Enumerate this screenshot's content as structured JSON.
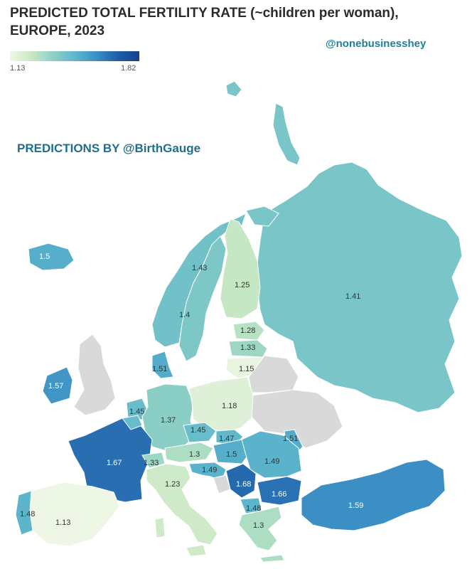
{
  "title": "PREDICTED TOTAL FERTILITY RATE (~children per woman), EUROPE, 2023",
  "title_line1": "PREDICTED TOTAL FERTILITY RATE (~children per woman),",
  "title_line2": "EUROPE, 2023",
  "handle": "@nonebusinesshey",
  "credit": "PREDICTIONS BY @BirthGauge",
  "legend": {
    "min_label": "1.13",
    "max_label": "1.82",
    "min_color": "#e8f5e0",
    "max_color": "#1a3f8c"
  },
  "colors": {
    "no_data": "#d9d9d9"
  },
  "regions": [
    {
      "value": "1.41"
    },
    {
      "value": "1.5"
    },
    {
      "value": "1.43"
    },
    {
      "value": "1.4"
    },
    {
      "value": "1.25"
    },
    {
      "value": "1.28"
    },
    {
      "value": "1.33"
    },
    {
      "value": "1.15"
    },
    {
      "value": "1.51"
    },
    {
      "value": "1.57"
    },
    {
      "value": "1.45"
    },
    {
      "value": "1.37"
    },
    {
      "value": "1.18"
    },
    {
      "value": "1.45"
    },
    {
      "value": "1.47"
    },
    {
      "value": "1.51"
    },
    {
      "value": "1.67"
    },
    {
      "value": "1.33"
    },
    {
      "value": "1.3"
    },
    {
      "value": "1.5"
    },
    {
      "value": "1.49"
    },
    {
      "value": "1.49"
    },
    {
      "value": "1.23"
    },
    {
      "value": "1.68"
    },
    {
      "value": "1.66"
    },
    {
      "value": "1.59"
    },
    {
      "value": "1.48"
    },
    {
      "value": "1.13"
    },
    {
      "value": "1.48"
    },
    {
      "value": "1.3"
    }
  ]
}
